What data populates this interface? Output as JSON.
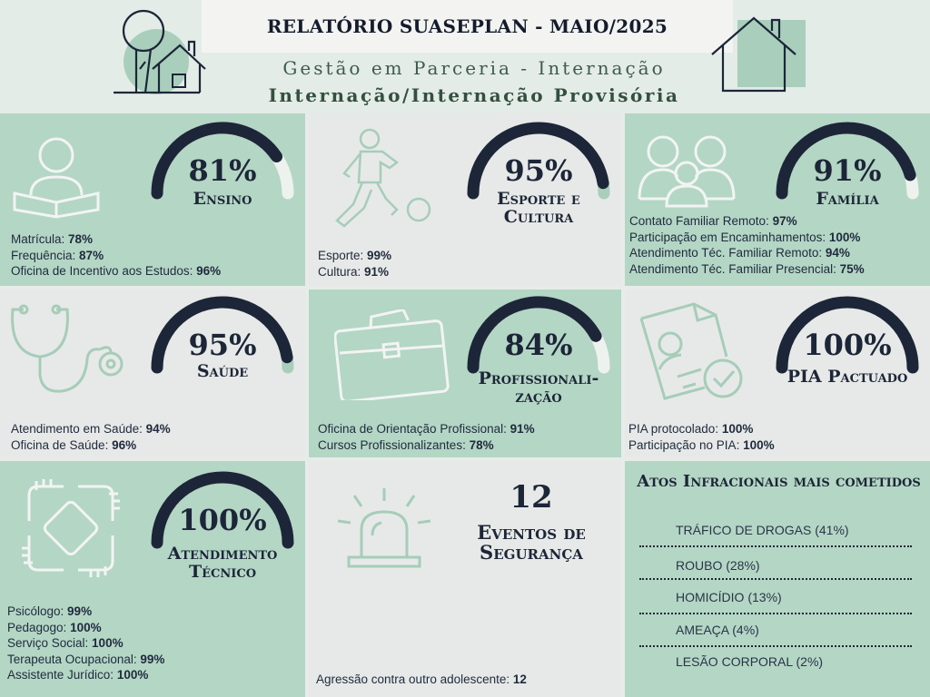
{
  "header": {
    "title": "RELATÓRIO SUASEPLAN - MAIO/2025",
    "subtitle1": "Gestão em Parceria - Internação",
    "subtitle2": "Internação/Internação Provisória"
  },
  "colors": {
    "dark_navy": "#1d2638",
    "mint": "#b4d6c5",
    "light_grey": "#e7e9e8",
    "icon_mint": "#8fbfa8"
  },
  "tiles": [
    {
      "percent": "81%",
      "label": "Ensino",
      "icon": "reading-person-icon",
      "items": [
        {
          "name": "Matrícula:",
          "value": "78%"
        },
        {
          "name": "Frequência:",
          "value": "87%"
        },
        {
          "name": "Oficina de Incentivo aos Estudos:",
          "value": "96%"
        }
      ]
    },
    {
      "percent": "95%",
      "label": "Esporte e Cultura",
      "icon": "soccer-player-icon",
      "items": [
        {
          "name": "Esporte:",
          "value": "99%"
        },
        {
          "name": "Cultura:",
          "value": "91%"
        }
      ]
    },
    {
      "percent": "91%",
      "label": "Família",
      "icon": "family-icon",
      "items": [
        {
          "name": "Contato Familiar Remoto:",
          "value": "97%"
        },
        {
          "name": "Participação em Encaminhamentos:",
          "value": "100%"
        },
        {
          "name": "Atendimento Téc. Familiar Remoto:",
          "value": "94%"
        },
        {
          "name": "Atendimento Téc. Familiar Presencial:",
          "value": "75%"
        }
      ]
    },
    {
      "percent": "95%",
      "label": "Saúde",
      "icon": "stethoscope-icon",
      "items": [
        {
          "name": "Atendimento em Saúde:",
          "value": "94%"
        },
        {
          "name": "Oficina de Saúde:",
          "value": "96%"
        }
      ]
    },
    {
      "percent": "84%",
      "label": "Profissionali-zação",
      "icon": "briefcase-icon",
      "items": [
        {
          "name": "Oficina de Orientação Profissional:",
          "value": "91%"
        },
        {
          "name": "Cursos Profissionalizantes:",
          "value": "78%"
        }
      ]
    },
    {
      "percent": "100%",
      "label": "PIA Pactuado",
      "icon": "document-approved-icon",
      "items": [
        {
          "name": "PIA protocolado:",
          "value": "100%"
        },
        {
          "name": "Participação no PIA:",
          "value": "100%"
        }
      ]
    },
    {
      "percent": "100%",
      "label": "Atendimento Técnico",
      "icon": "linked-hands-icon",
      "items": [
        {
          "name": "Psicólogo:",
          "value": "99%"
        },
        {
          "name": "Pedagogo:",
          "value": "100%"
        },
        {
          "name": "Serviço Social:",
          "value": "100%"
        },
        {
          "name": "Terapeuta Ocupacional:",
          "value": "99%"
        },
        {
          "name": "Assistente Jurídico:",
          "value": "100%"
        }
      ]
    }
  ],
  "gauge_levels": [
    0.81,
    0.95,
    0.91,
    0.95,
    0.84,
    1.0,
    1.0
  ],
  "security": {
    "count": "12",
    "label": "Eventos de Segurança",
    "icon": "siren-icon",
    "item": {
      "name": "Agressão contra outro adolescente:",
      "value": "12"
    }
  },
  "atos": {
    "title": "Atos Infracionais mais cometidos",
    "list": [
      "TRÁFICO DE DROGAS (41%)",
      "ROUBO (28%)",
      "HOMICÍDIO (13%)",
      "AMEAÇA (4%)",
      "LESÃO CORPORAL (2%)"
    ]
  }
}
